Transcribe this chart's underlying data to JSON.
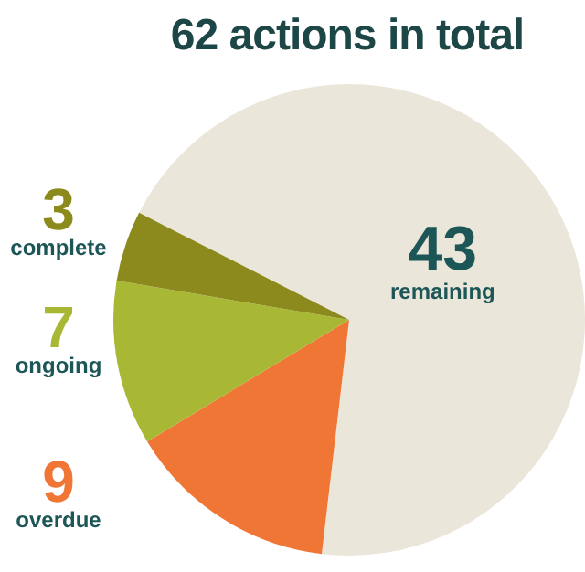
{
  "chart_data": {
    "type": "pie",
    "title": "62 actions in total",
    "categories": [
      "remaining",
      "overdue",
      "ongoing",
      "complete"
    ],
    "values": [
      43,
      9,
      7,
      3
    ],
    "colors": [
      "#ebe6da",
      "#f07636",
      "#a8b834",
      "#8c8a1c"
    ],
    "data_labels": true,
    "legend": false
  }
}
